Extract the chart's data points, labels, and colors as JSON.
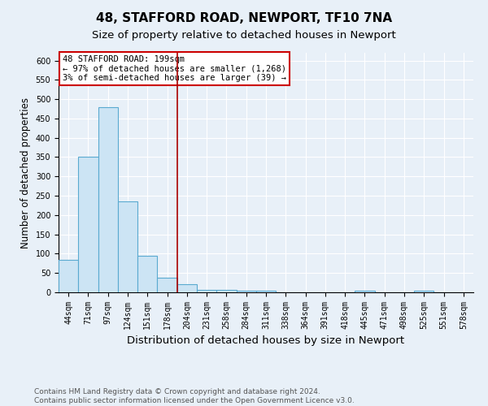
{
  "title": "48, STAFFORD ROAD, NEWPORT, TF10 7NA",
  "subtitle": "Size of property relative to detached houses in Newport",
  "xlabel": "Distribution of detached houses by size in Newport",
  "ylabel": "Number of detached properties",
  "categories": [
    "44sqm",
    "71sqm",
    "97sqm",
    "124sqm",
    "151sqm",
    "178sqm",
    "204sqm",
    "231sqm",
    "258sqm",
    "284sqm",
    "311sqm",
    "338sqm",
    "364sqm",
    "391sqm",
    "418sqm",
    "445sqm",
    "471sqm",
    "498sqm",
    "525sqm",
    "551sqm",
    "578sqm"
  ],
  "values": [
    85,
    350,
    480,
    235,
    95,
    37,
    20,
    7,
    6,
    5,
    5,
    1,
    1,
    0,
    0,
    5,
    0,
    0,
    5,
    0,
    0
  ],
  "bar_color": "#cce4f4",
  "bar_edge_color": "#5aaad0",
  "red_line_x": 5.5,
  "red_line_color": "#aa0000",
  "annotation_text": "48 STAFFORD ROAD: 199sqm\n← 97% of detached houses are smaller (1,268)\n3% of semi-detached houses are larger (39) →",
  "annotation_box_facecolor": "#ffffff",
  "annotation_box_edgecolor": "#cc0000",
  "footnote": "Contains HM Land Registry data © Crown copyright and database right 2024.\nContains public sector information licensed under the Open Government Licence v3.0.",
  "ylim": [
    0,
    620
  ],
  "yticks": [
    0,
    50,
    100,
    150,
    200,
    250,
    300,
    350,
    400,
    450,
    500,
    550,
    600
  ],
  "background_color": "#e8f0f8",
  "plot_background": "#e8f0f8",
  "grid_color": "#ffffff",
  "title_fontsize": 11,
  "subtitle_fontsize": 9.5,
  "xlabel_fontsize": 9.5,
  "ylabel_fontsize": 8.5,
  "tick_fontsize": 7,
  "annotation_fontsize": 7.5,
  "footnote_fontsize": 6.5
}
